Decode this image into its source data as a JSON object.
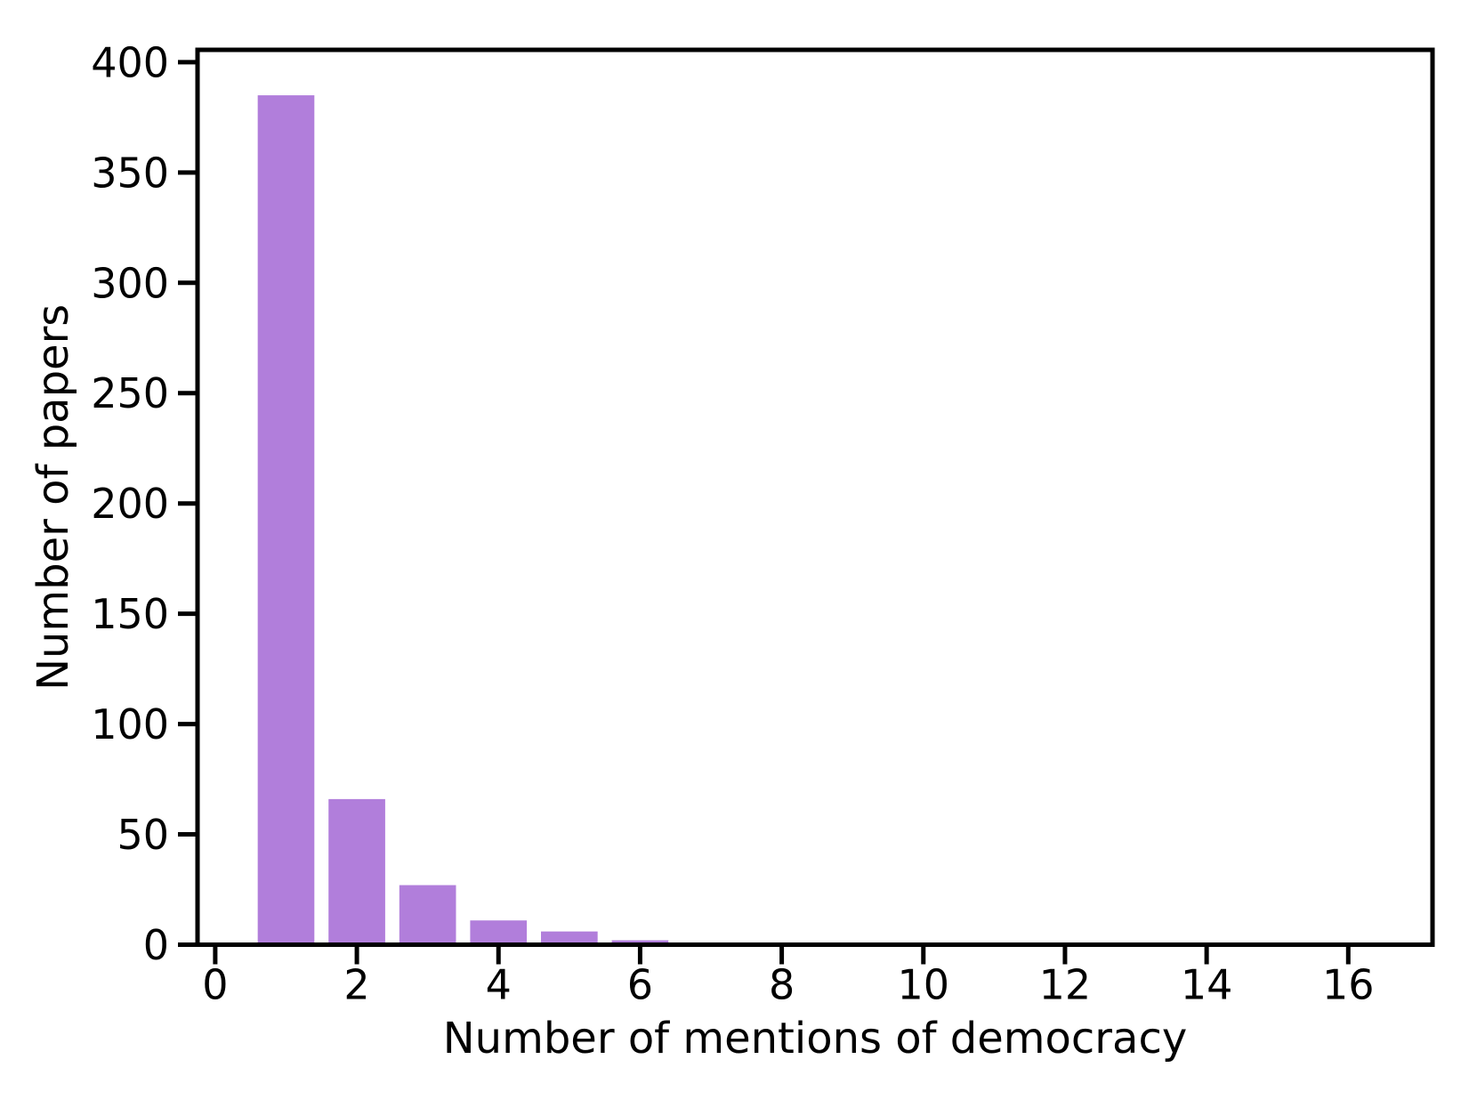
{
  "figure": {
    "background": "#ffffff"
  },
  "chart_data": {
    "type": "bar",
    "x": [
      1,
      2,
      3,
      4,
      5,
      6,
      7,
      8,
      9,
      16
    ],
    "values": [
      385,
      66,
      27,
      11,
      6,
      2,
      1,
      1,
      1,
      1
    ],
    "bar_width": 0.8,
    "xlabel": "Number of mentions of democracy",
    "ylabel": "Number of papers",
    "xticks": [
      0,
      2,
      4,
      6,
      8,
      10,
      12,
      14,
      16
    ],
    "yticks": [
      0,
      50,
      100,
      150,
      200,
      250,
      300,
      350,
      400
    ],
    "xlim": [
      -0.25,
      17.19
    ],
    "ylim": [
      0,
      405.6
    ],
    "grid": false,
    "legend_position": "none",
    "bar_color": "#b17edb",
    "axis_color": "#000000"
  }
}
